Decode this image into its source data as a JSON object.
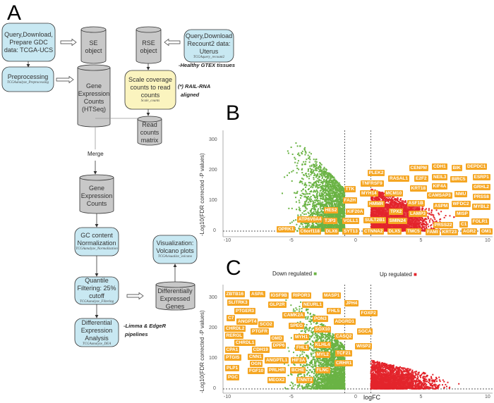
{
  "panel_a": {
    "label": "A",
    "nodes": {
      "query_gdc": {
        "text": "Query,Download, Prepare GDC data: TCGA-UCS"
      },
      "se_object": {
        "text": "SE object"
      },
      "rse_object": {
        "text": "RSE object"
      },
      "query_recount": {
        "text": "Query,Download Recount2 data: Uterus",
        "sub": "TCGAquery_recount2"
      },
      "preprocessing": {
        "text": "Preprocessing",
        "sub": "TCGAanalyze_Preprocessing"
      },
      "htseq": {
        "text": "Gene Expression Counts (HTSeq)"
      },
      "scale": {
        "text": "Scale coverage counts to read counts",
        "sub": "Scale_counts"
      },
      "read_counts": {
        "text": "Read counts matrix"
      },
      "gene_counts": {
        "text": "Gene Expression Counts"
      },
      "gc_norm": {
        "text": "GC content Normalization",
        "sub": "TCGAanalyze_Normalization"
      },
      "quantile": {
        "text": "Quantile Filtering: 25% cutoff",
        "sub": "TCGAanalyze_Filtering"
      },
      "dea": {
        "text": "Differential Expression Analysis",
        "sub": "TCGAanalyze_DEA"
      },
      "deg": {
        "text": "Differentially Expressed Genes"
      },
      "volcano": {
        "text": "Visualization: Volcano plots",
        "sub": "TCGAvisualize_volcano"
      }
    },
    "notes": {
      "gtex": "-Healthy GTEX tissues",
      "rail": "(*) RAIL-RNA",
      "rail2": "aligned",
      "merge": "Merge",
      "limma": "-Limma & EdgeR",
      "limma2": "pipelines"
    },
    "colors": {
      "blue_box": "#c8e8f2",
      "yellow_box": "#fbf4bf",
      "cylinder": "#c8c8c8"
    }
  },
  "chart_data": [
    {
      "panel": "B",
      "type": "scatter",
      "xlabel": "",
      "ylabel": "-Log10(FDR corrected -P values)",
      "xlim": [
        -10,
        10
      ],
      "ylim": [
        0,
        330
      ],
      "xticks": [
        "-10",
        "-5",
        "0",
        "5",
        "10"
      ],
      "yticks": [
        "0",
        "100",
        "200",
        "300"
      ],
      "thresholds": {
        "logFC": [
          -1,
          1
        ],
        "y": 0
      },
      "series": [
        {
          "name": "Down regulated",
          "color": "#6ab344"
        },
        {
          "name": "Up regulated",
          "color": "#e3242b"
        }
      ],
      "labeled_genes": [
        "PLEK2",
        "RASAL1",
        "CENPM",
        "CDH1",
        "BIK",
        "DEPDC1",
        "E2F2",
        "NEIL3",
        "BIRC5",
        "ESRP1",
        "TNFRSF9",
        "KRT18",
        "KIF4A",
        "GRHL2",
        "TTK",
        "MYH14",
        "MCM10",
        "CAMSAP3",
        "NMU",
        "PRSS8",
        "FA2H",
        "HMMR",
        "ASF1B",
        "ASPM",
        "WFDC2",
        "MYBL2",
        "HES2",
        "KIF20A",
        "TPX2",
        "LAMP3",
        "MISP",
        "ATP6V0A4",
        "TJP3",
        "VGLL1",
        "SULT2B1",
        "SMIN24",
        "FOLR1",
        "PRSS22",
        "OPRK1",
        "C6orf118",
        "DLX6",
        "SYT13",
        "CTNNA2",
        "DLX5",
        "TMC5",
        "FAMI",
        "KRT23",
        "AGR2",
        "OM1",
        "C1"
      ]
    },
    {
      "panel": "C",
      "type": "scatter",
      "xlabel": "logFC",
      "ylabel": "-Log10(FDR corrected -P values)",
      "xlim": [
        -10,
        10
      ],
      "ylim": [
        0,
        330
      ],
      "xticks": [
        "-10",
        "-5",
        "0",
        "5",
        "10"
      ],
      "yticks": [
        "0",
        "100",
        "200",
        "300"
      ],
      "thresholds": {
        "logFC": [
          -1,
          1
        ],
        "y": 0
      },
      "legend": [
        "Down regulated",
        "Up regulated"
      ],
      "series": [
        {
          "name": "Down regulated",
          "color": "#6ab344"
        },
        {
          "name": "Up regulated",
          "color": "#e3242b"
        }
      ],
      "labeled_genes": [
        "ZBTB16",
        "ASPA",
        "IGSF9B",
        "RIPOR3",
        "MASP1",
        "SLITRK3",
        "GLP2R",
        "NEURL1",
        "JPH4",
        "PTGER3",
        "FHL5",
        "CAMK2A",
        "FOXP2",
        "C7",
        "ANGPT4",
        "PON3",
        "SCO2",
        "CHRDL2",
        "ADGRD1",
        "SPEG",
        "SOX10",
        "SGCA",
        "RERGL",
        "PTGFR",
        "CHRDL1",
        "OMD",
        "MYH1",
        "CASQ2",
        "CDH19",
        "CPA1",
        "DPP6",
        "KLHL4",
        "WISP2",
        "CNN1",
        "FHL1",
        "PTGIS",
        "OGN",
        "ANGPTL1",
        "MYL2",
        "TCF21",
        "HIF3A",
        "PLP1",
        "FGF10",
        "PRLHR",
        "BCHE",
        "FLNC",
        "CRHR1",
        "PGC",
        "MEOX2",
        "TNNT3"
      ]
    }
  ],
  "panel_b": {
    "label": "B"
  },
  "panel_c": {
    "label": "C"
  }
}
